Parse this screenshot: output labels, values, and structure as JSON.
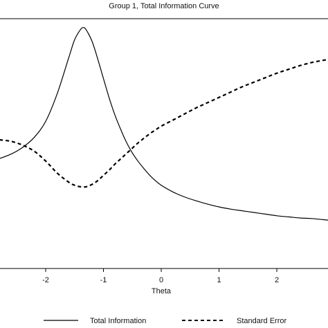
{
  "chart_data": {
    "type": "line",
    "title": "Group 1, Total Information Curve",
    "xlabel": "Theta",
    "ylabel": "",
    "xlim": [
      -2.8,
      2.9
    ],
    "x_ticks": [
      -2,
      -1,
      0,
      1,
      2
    ],
    "grid": false,
    "legend_position": "bottom",
    "series": [
      {
        "name": "Total Information",
        "style": "solid",
        "color": "#000000",
        "y_scale": "information",
        "x": [
          -2.8,
          -2.6,
          -2.4,
          -2.2,
          -2.0,
          -1.8,
          -1.6,
          -1.5,
          -1.4,
          -1.35,
          -1.3,
          -1.2,
          -1.1,
          -1.0,
          -0.9,
          -0.8,
          -0.7,
          -0.6,
          -0.5,
          -0.4,
          -0.3,
          -0.2,
          -0.1,
          0.0,
          0.2,
          0.4,
          0.6,
          0.8,
          1.0,
          1.2,
          1.4,
          1.6,
          1.8,
          2.0,
          2.2,
          2.4,
          2.6,
          2.8,
          2.9
        ],
        "y": [
          0.98,
          1.06,
          1.18,
          1.36,
          1.65,
          2.15,
          2.8,
          3.12,
          3.3,
          3.34,
          3.3,
          3.1,
          2.78,
          2.42,
          2.07,
          1.76,
          1.5,
          1.27,
          1.08,
          0.93,
          0.8,
          0.68,
          0.58,
          0.5,
          0.38,
          0.29,
          0.22,
          0.16,
          0.11,
          0.07,
          0.04,
          0.01,
          -0.02,
          -0.05,
          -0.07,
          -0.09,
          -0.1,
          -0.12,
          -0.13
        ]
      },
      {
        "name": "Standard Error",
        "style": "dashed",
        "color": "#000000",
        "y_scale": "standard_error",
        "x": [
          -2.8,
          -2.6,
          -2.4,
          -2.2,
          -2.0,
          -1.8,
          -1.6,
          -1.5,
          -1.4,
          -1.3,
          -1.2,
          -1.1,
          -1.0,
          -0.9,
          -0.8,
          -0.7,
          -0.6,
          -0.5,
          -0.4,
          -0.3,
          -0.2,
          -0.1,
          0.0,
          0.2,
          0.4,
          0.6,
          0.8,
          1.0,
          1.2,
          1.4,
          1.6,
          1.8,
          2.0,
          2.2,
          2.4,
          2.6,
          2.8,
          2.9
        ],
        "y": [
          1.2,
          1.18,
          1.13,
          1.05,
          0.92,
          0.76,
          0.64,
          0.6,
          0.58,
          0.58,
          0.61,
          0.66,
          0.73,
          0.8,
          0.88,
          0.95,
          1.02,
          1.09,
          1.16,
          1.22,
          1.28,
          1.33,
          1.38,
          1.46,
          1.54,
          1.62,
          1.69,
          1.76,
          1.83,
          1.9,
          1.96,
          2.02,
          2.08,
          2.13,
          2.18,
          2.22,
          2.25,
          2.26
        ]
      }
    ],
    "y_ranges": {
      "information": [
        -1.0,
        3.5
      ],
      "standard_error": [
        -0.5,
        2.8
      ]
    }
  }
}
